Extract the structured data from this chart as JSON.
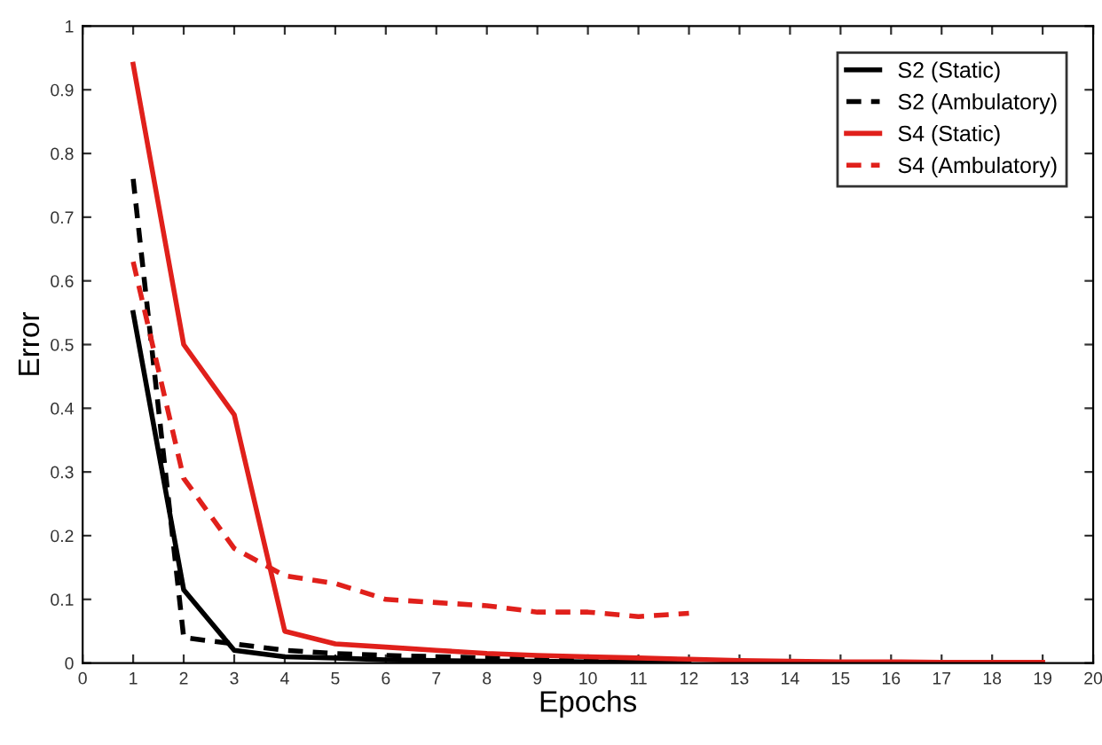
{
  "chart_data": {
    "type": "line",
    "xlabel": "Epochs",
    "ylabel": "Error",
    "xlim": [
      0,
      20
    ],
    "xticks": [
      0,
      1,
      2,
      3,
      4,
      5,
      6,
      7,
      8,
      9,
      10,
      11,
      12,
      13,
      14,
      15,
      16,
      17,
      18,
      19,
      20
    ],
    "ylim": [
      0,
      1
    ],
    "yticks": [
      0,
      0.1,
      0.2,
      0.3,
      0.4,
      0.5,
      0.6,
      0.7,
      0.8,
      0.9,
      1
    ],
    "grid": false,
    "legend": "top right",
    "marker": "none",
    "series": [
      {
        "name": "S2 (Static)",
        "color": "#000000",
        "line_style": "solid",
        "x": [
          1,
          2,
          3,
          4,
          5,
          6,
          7,
          8,
          9,
          10,
          11,
          12
        ],
        "values": [
          0.55,
          0.115,
          0.02,
          0.01,
          0.008,
          0.005,
          0.004,
          0.003,
          0.003,
          0.002,
          0.002,
          0.002
        ]
      },
      {
        "name": "S2 (Ambulatory)",
        "color": "#000000",
        "line_style": "dashed",
        "x": [
          1,
          2,
          3,
          4,
          5,
          6,
          7,
          8,
          9,
          10,
          11,
          12
        ],
        "values": [
          0.76,
          0.04,
          0.03,
          0.02,
          0.015,
          0.012,
          0.01,
          0.008,
          0.006,
          0.005,
          0.004,
          0.003
        ]
      },
      {
        "name": "S4 (Static)",
        "color": "#e0201b",
        "line_style": "solid",
        "x": [
          1,
          2,
          3,
          4,
          5,
          6,
          7,
          8,
          9,
          10,
          11,
          12,
          13,
          14,
          15,
          16,
          17,
          18,
          19
        ],
        "values": [
          0.94,
          0.5,
          0.39,
          0.05,
          0.03,
          0.025,
          0.02,
          0.015,
          0.012,
          0.01,
          0.008,
          0.006,
          0.004,
          0.003,
          0.002,
          0.002,
          0.001,
          0.001,
          0.001
        ]
      },
      {
        "name": "S4 (Ambulatory)",
        "color": "#e0201b",
        "line_style": "dashed",
        "x": [
          1,
          2,
          3,
          4,
          5,
          6,
          7,
          8,
          9,
          10,
          11,
          12
        ],
        "values": [
          0.63,
          0.29,
          0.18,
          0.137,
          0.125,
          0.1,
          0.095,
          0.09,
          0.08,
          0.08,
          0.073,
          0.078
        ]
      }
    ]
  }
}
